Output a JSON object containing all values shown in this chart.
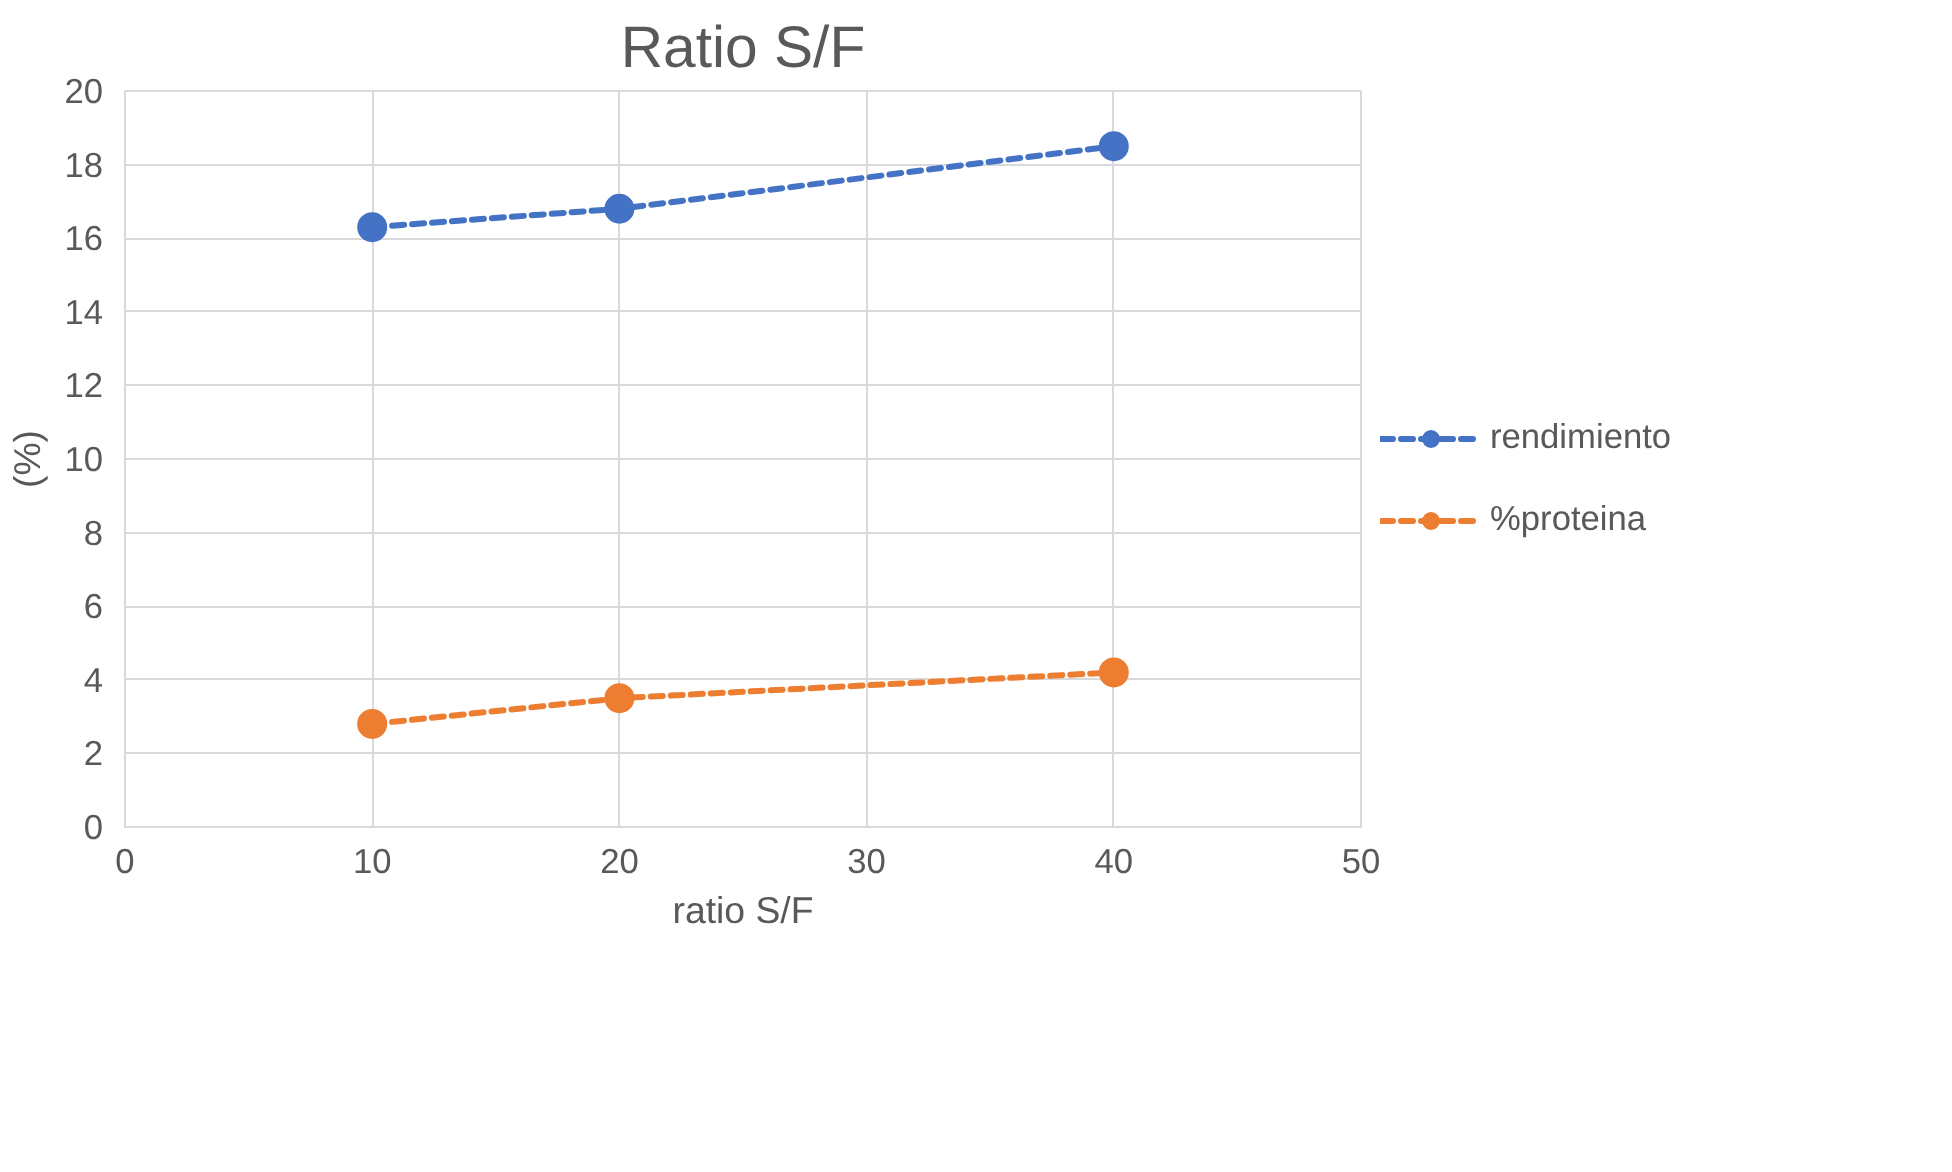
{
  "chart_data": {
    "type": "line",
    "title": "Ratio S/F",
    "xlabel": "ratio S/F",
    "ylabel": "(%)",
    "x": [
      10,
      20,
      40
    ],
    "series": [
      {
        "name": "rendimiento",
        "color": "#4472c4",
        "values": [
          16.3,
          16.8,
          18.5
        ]
      },
      {
        "name": "%proteina",
        "color": "#ed7d31",
        "values": [
          2.8,
          3.5,
          4.2
        ]
      }
    ],
    "xlim": [
      0,
      50
    ],
    "xticks": [
      0,
      10,
      20,
      30,
      40,
      50
    ],
    "ylim": [
      0,
      20
    ],
    "yticks": [
      0,
      2,
      4,
      6,
      8,
      10,
      12,
      14,
      16,
      18,
      20
    ],
    "grid": true,
    "legend": "right",
    "marker": "circle",
    "line_style": "dashed"
  }
}
